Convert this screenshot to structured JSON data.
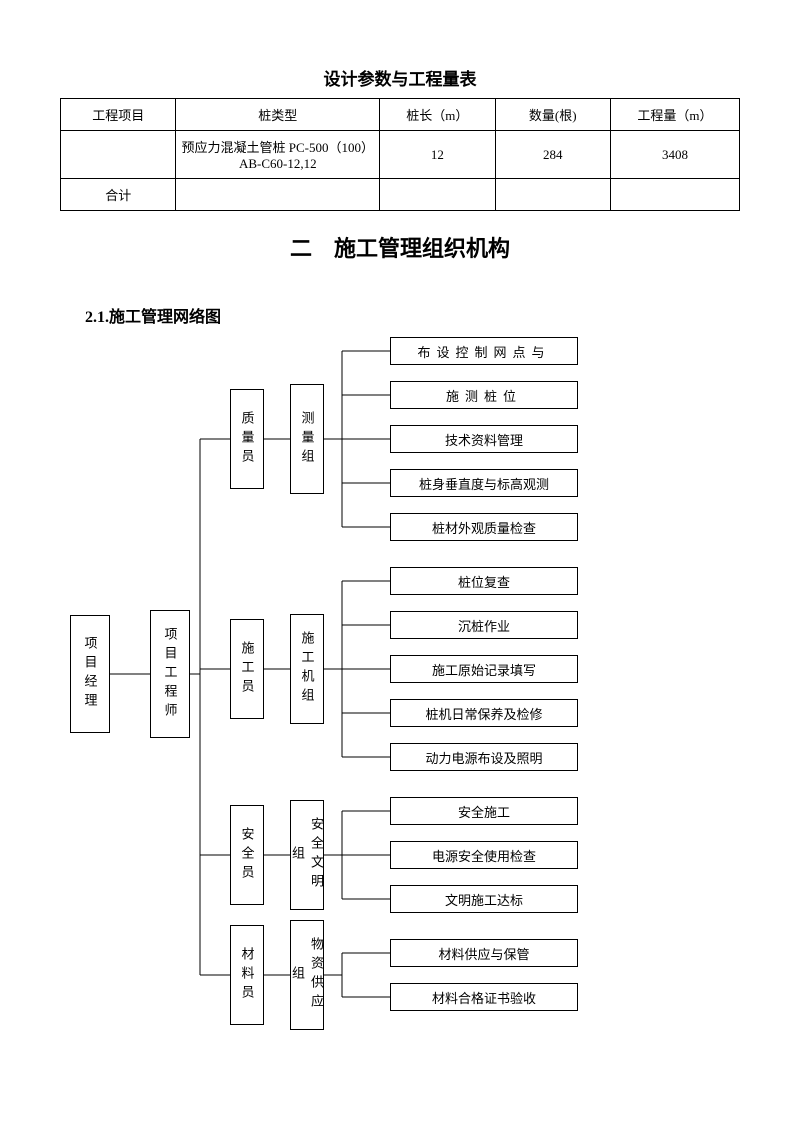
{
  "table": {
    "title": "设计参数与工程量表",
    "columns": [
      "工程项目",
      "桩类型",
      "桩长（m）",
      "数量(根)",
      "工程量（m）"
    ],
    "rows": [
      {
        "project": "",
        "type": "预应力混凝土管桩 PC-500（100）AB-C60-12,12",
        "length": "12",
        "qty": "284",
        "amount": "3408"
      }
    ],
    "total_label": "合计"
  },
  "section": {
    "title": "二　施工管理组织机构",
    "sub": "2.1.施工管理网络图"
  },
  "org": {
    "level1": "项目经理",
    "level2": "项目工程师",
    "roles": {
      "r1": "质量员",
      "r2": "施工员",
      "r3": "安全员",
      "r4": "材料员"
    },
    "groups": {
      "g1": "测量组",
      "g2": "施工机组",
      "g3": "安全文明组",
      "g4": "物资供应组"
    },
    "tasks": {
      "t1": "布设控制网点与",
      "t2": "施测桩位",
      "t3": "技术资料管理",
      "t4": "桩身垂直度与标高观测",
      "t5": "桩材外观质量检查",
      "t6": "桩位复查",
      "t7": "沉桩作业",
      "t8": "施工原始记录填写",
      "t9": "桩机日常保养及检修",
      "t10": "动力电源布设及照明",
      "t11": "安全施工",
      "t12": "电源安全使用检查",
      "t13": "文明施工达标",
      "t14": "材料供应与保管",
      "t15": "材料合格证书验收"
    }
  },
  "style": {
    "leaf_width": 188,
    "leaf_height": 28,
    "role_width": 34,
    "role_height": 100,
    "group_width": 34,
    "group_height": 110,
    "l1_width": 40,
    "l1_height": 118,
    "l2_width": 40,
    "l2_height": 128
  }
}
